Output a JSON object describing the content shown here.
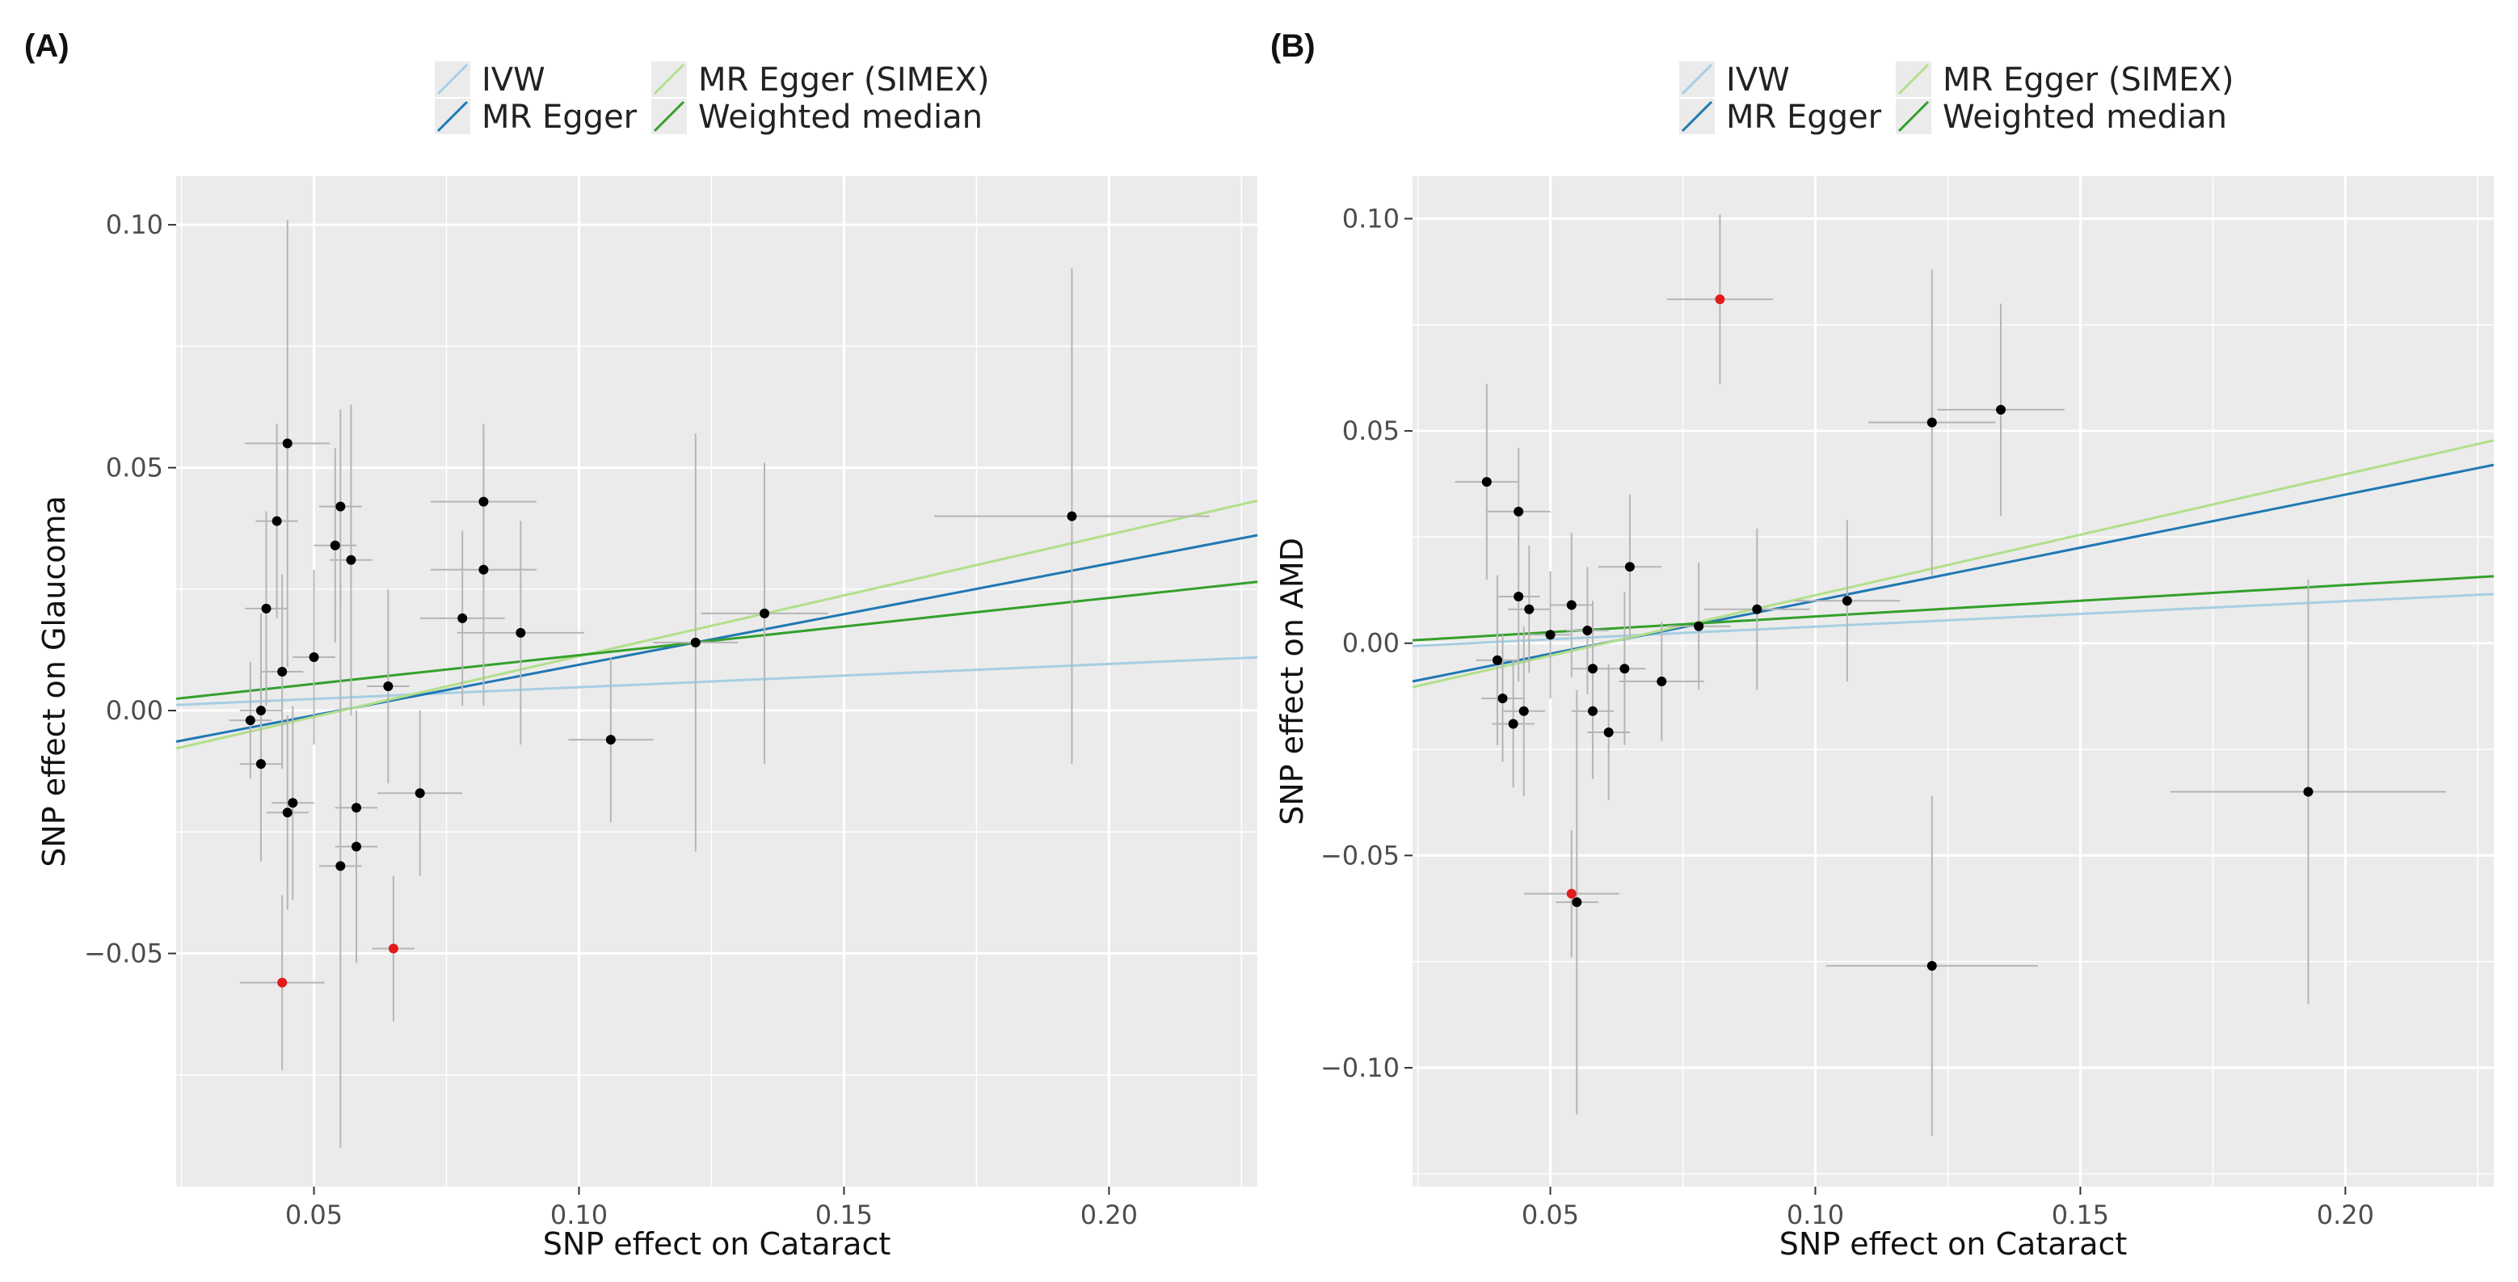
{
  "chart_data": [
    {
      "type": "scatter",
      "panel_label": "(A)",
      "xlabel": "SNP effect on Cataract",
      "ylabel": "SNP effect on Glaucoma",
      "xlim": [
        0.024,
        0.228
      ],
      "ylim": [
        -0.098,
        0.11
      ],
      "xticks": [
        0.05,
        0.1,
        0.15,
        0.2
      ],
      "xtick_labels": [
        "0.05",
        "0.10",
        "0.15",
        "0.20"
      ],
      "yticks": [
        -0.05,
        0.0,
        0.05,
        0.1
      ],
      "ytick_labels": [
        "−0.05",
        "0.00",
        "0.05",
        "0.10"
      ],
      "legend": {
        "position": "top",
        "entries": [
          {
            "name": "IVW",
            "color": "#a6cee3"
          },
          {
            "name": "MR Egger",
            "color": "#1f78b4"
          },
          {
            "name": "MR Egger (SIMEX)",
            "color": "#b2df8a"
          },
          {
            "name": "Weighted median",
            "color": "#33a02c"
          }
        ]
      },
      "lines": [
        {
          "name": "IVW",
          "color": "#a6cee3",
          "intercept": 0.0,
          "slope": 0.048
        },
        {
          "name": "MR Egger",
          "color": "#1f78b4",
          "intercept": -0.0114,
          "slope": 0.2083
        },
        {
          "name": "MR Egger (SIMEX)",
          "color": "#b2df8a",
          "intercept": -0.0138,
          "slope": 0.25
        },
        {
          "name": "Weighted median",
          "color": "#33a02c",
          "intercept": -0.0004,
          "slope": 0.118
        }
      ],
      "points": [
        {
          "x": 0.038,
          "y": -0.002,
          "x_se": 0.004,
          "y_se": 0.012,
          "color": "black"
        },
        {
          "x": 0.04,
          "y": 0.0,
          "x_se": 0.004,
          "y_se": 0.02,
          "color": "black"
        },
        {
          "x": 0.04,
          "y": -0.011,
          "x_se": 0.004,
          "y_se": 0.02,
          "color": "black"
        },
        {
          "x": 0.041,
          "y": 0.021,
          "x_se": 0.004,
          "y_se": 0.02,
          "color": "black"
        },
        {
          "x": 0.043,
          "y": 0.039,
          "x_se": 0.004,
          "y_se": 0.02,
          "color": "black"
        },
        {
          "x": 0.044,
          "y": 0.008,
          "x_se": 0.004,
          "y_se": 0.02,
          "color": "black"
        },
        {
          "x": 0.045,
          "y": 0.055,
          "x_se": 0.008,
          "y_se": 0.046,
          "color": "black"
        },
        {
          "x": 0.045,
          "y": -0.021,
          "x_se": 0.004,
          "y_se": 0.02,
          "color": "black"
        },
        {
          "x": 0.046,
          "y": -0.019,
          "x_se": 0.004,
          "y_se": 0.02,
          "color": "black"
        },
        {
          "x": 0.044,
          "y": -0.056,
          "x_se": 0.008,
          "y_se": 0.018,
          "color": "red"
        },
        {
          "x": 0.05,
          "y": 0.011,
          "x_se": 0.004,
          "y_se": 0.018,
          "color": "black"
        },
        {
          "x": 0.054,
          "y": 0.034,
          "x_se": 0.004,
          "y_se": 0.02,
          "color": "black"
        },
        {
          "x": 0.055,
          "y": 0.042,
          "x_se": 0.004,
          "y_se": 0.02,
          "color": "black"
        },
        {
          "x": 0.055,
          "y": -0.032,
          "x_se": 0.004,
          "y_se": 0.058,
          "color": "black"
        },
        {
          "x": 0.057,
          "y": 0.031,
          "x_se": 0.004,
          "y_se": 0.032,
          "color": "black"
        },
        {
          "x": 0.058,
          "y": -0.028,
          "x_se": 0.004,
          "y_se": 0.024,
          "color": "black"
        },
        {
          "x": 0.058,
          "y": -0.02,
          "x_se": 0.004,
          "y_se": 0.02,
          "color": "black"
        },
        {
          "x": 0.064,
          "y": 0.005,
          "x_se": 0.004,
          "y_se": 0.02,
          "color": "black"
        },
        {
          "x": 0.065,
          "y": -0.049,
          "x_se": 0.004,
          "y_se": 0.015,
          "color": "red"
        },
        {
          "x": 0.07,
          "y": -0.017,
          "x_se": 0.008,
          "y_se": 0.017,
          "color": "black"
        },
        {
          "x": 0.078,
          "y": 0.019,
          "x_se": 0.008,
          "y_se": 0.018,
          "color": "black"
        },
        {
          "x": 0.082,
          "y": 0.043,
          "x_se": 0.01,
          "y_se": 0.016,
          "color": "black"
        },
        {
          "x": 0.082,
          "y": 0.029,
          "x_se": 0.01,
          "y_se": 0.028,
          "color": "black"
        },
        {
          "x": 0.089,
          "y": 0.016,
          "x_se": 0.012,
          "y_se": 0.023,
          "color": "black"
        },
        {
          "x": 0.106,
          "y": -0.006,
          "x_se": 0.008,
          "y_se": 0.017,
          "color": "black"
        },
        {
          "x": 0.122,
          "y": 0.014,
          "x_se": 0.008,
          "y_se": 0.043,
          "color": "black"
        },
        {
          "x": 0.135,
          "y": 0.02,
          "x_se": 0.012,
          "y_se": 0.031,
          "color": "black"
        },
        {
          "x": 0.193,
          "y": 0.04,
          "x_se": 0.026,
          "y_se": 0.051,
          "color": "black"
        }
      ]
    },
    {
      "type": "scatter",
      "panel_label": "(B)",
      "xlabel": "SNP effect on Cataract",
      "ylabel": "SNP effect on AMD",
      "xlim": [
        0.024,
        0.228
      ],
      "ylim": [
        -0.128,
        0.11
      ],
      "xticks": [
        0.05,
        0.1,
        0.15,
        0.2
      ],
      "xtick_labels": [
        "0.05",
        "0.10",
        "0.15",
        "0.20"
      ],
      "yticks": [
        -0.1,
        -0.05,
        0.0,
        0.05,
        0.1
      ],
      "ytick_labels": [
        "−0.10",
        "−0.05",
        "0.00",
        "0.05",
        "0.10"
      ],
      "legend": {
        "position": "top",
        "entries": [
          {
            "name": "IVW",
            "color": "#a6cee3"
          },
          {
            "name": "MR Egger",
            "color": "#1f78b4"
          },
          {
            "name": "MR Egger (SIMEX)",
            "color": "#b2df8a"
          },
          {
            "name": "Weighted median",
            "color": "#33a02c"
          }
        ]
      },
      "lines": [
        {
          "name": "IVW",
          "color": "#a6cee3",
          "intercept": -0.0021,
          "slope": 0.06
        },
        {
          "name": "MR Egger",
          "color": "#1f78b4",
          "intercept": -0.015,
          "slope": 0.25
        },
        {
          "name": "MR Egger (SIMEX)",
          "color": "#b2df8a",
          "intercept": -0.0172,
          "slope": 0.285
        },
        {
          "name": "Weighted median",
          "color": "#33a02c",
          "intercept": -0.0011,
          "slope": 0.074
        }
      ],
      "points": [
        {
          "x": 0.038,
          "y": 0.038,
          "x_se": 0.006,
          "y_se": 0.023,
          "color": "black"
        },
        {
          "x": 0.04,
          "y": -0.004,
          "x_se": 0.004,
          "y_se": 0.02,
          "color": "black"
        },
        {
          "x": 0.041,
          "y": -0.013,
          "x_se": 0.004,
          "y_se": 0.015,
          "color": "black"
        },
        {
          "x": 0.043,
          "y": -0.019,
          "x_se": 0.004,
          "y_se": 0.015,
          "color": "black"
        },
        {
          "x": 0.044,
          "y": 0.031,
          "x_se": 0.006,
          "y_se": 0.015,
          "color": "black"
        },
        {
          "x": 0.044,
          "y": 0.011,
          "x_se": 0.004,
          "y_se": 0.02,
          "color": "black"
        },
        {
          "x": 0.045,
          "y": -0.016,
          "x_se": 0.004,
          "y_se": 0.02,
          "color": "black"
        },
        {
          "x": 0.046,
          "y": 0.008,
          "x_se": 0.004,
          "y_se": 0.015,
          "color": "black"
        },
        {
          "x": 0.05,
          "y": 0.002,
          "x_se": 0.004,
          "y_se": 0.015,
          "color": "black"
        },
        {
          "x": 0.054,
          "y": 0.009,
          "x_se": 0.004,
          "y_se": 0.017,
          "color": "black"
        },
        {
          "x": 0.054,
          "y": -0.059,
          "x_se": 0.009,
          "y_se": 0.015,
          "color": "red"
        },
        {
          "x": 0.055,
          "y": -0.061,
          "x_se": 0.004,
          "y_se": 0.05,
          "color": "black"
        },
        {
          "x": 0.057,
          "y": 0.003,
          "x_se": 0.004,
          "y_se": 0.015,
          "color": "black"
        },
        {
          "x": 0.058,
          "y": -0.016,
          "x_se": 0.004,
          "y_se": 0.016,
          "color": "black"
        },
        {
          "x": 0.058,
          "y": -0.006,
          "x_se": 0.004,
          "y_se": 0.016,
          "color": "black"
        },
        {
          "x": 0.061,
          "y": -0.021,
          "x_se": 0.004,
          "y_se": 0.016,
          "color": "black"
        },
        {
          "x": 0.064,
          "y": -0.006,
          "x_se": 0.004,
          "y_se": 0.018,
          "color": "black"
        },
        {
          "x": 0.065,
          "y": 0.018,
          "x_se": 0.006,
          "y_se": 0.017,
          "color": "black"
        },
        {
          "x": 0.071,
          "y": -0.009,
          "x_se": 0.008,
          "y_se": 0.014,
          "color": "black"
        },
        {
          "x": 0.078,
          "y": 0.004,
          "x_se": 0.006,
          "y_se": 0.015,
          "color": "black"
        },
        {
          "x": 0.082,
          "y": 0.081,
          "x_se": 0.01,
          "y_se": 0.02,
          "color": "red"
        },
        {
          "x": 0.089,
          "y": 0.008,
          "x_se": 0.01,
          "y_se": 0.019,
          "color": "black"
        },
        {
          "x": 0.106,
          "y": 0.01,
          "x_se": 0.01,
          "y_se": 0.019,
          "color": "black"
        },
        {
          "x": 0.122,
          "y": 0.052,
          "x_se": 0.012,
          "y_se": 0.036,
          "color": "black"
        },
        {
          "x": 0.122,
          "y": -0.076,
          "x_se": 0.02,
          "y_se": 0.04,
          "color": "black"
        },
        {
          "x": 0.135,
          "y": 0.055,
          "x_se": 0.012,
          "y_se": 0.025,
          "color": "black"
        },
        {
          "x": 0.193,
          "y": -0.035,
          "x_se": 0.026,
          "y_se": 0.05,
          "color": "black"
        }
      ]
    }
  ]
}
